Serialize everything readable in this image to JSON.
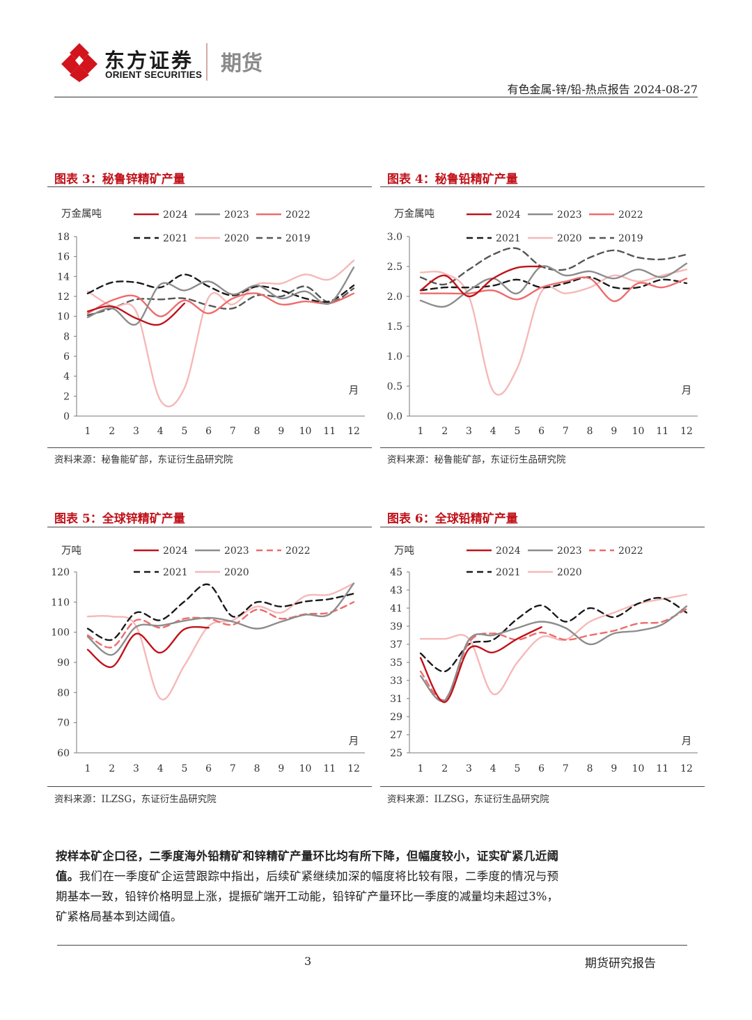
{
  "header": {
    "brand_cn": "东方证券",
    "brand_en": "ORIENT SECURITIES",
    "brand_tag": "期货",
    "report_title": "有色金属-锌/铅-热点报告 2024-08-27"
  },
  "colors": {
    "2024": "#c0121a",
    "2023": "#8c8c8c",
    "2022": "#ee6b6b",
    "2021": "#1a1a1a",
    "2020": "#f6b8b8",
    "2019": "#555555",
    "title_red": "#c0121a"
  },
  "figures": [
    {
      "title": "图表 3：秘鲁锌精矿产量",
      "source": "资料来源：秘鲁能矿部，东证衍生品研究院",
      "chart_data": {
        "type": "line",
        "ylabel": "万金属吨",
        "xlabel": "月",
        "x": [
          1,
          2,
          3,
          4,
          5,
          6,
          7,
          8,
          9,
          10,
          11,
          12
        ],
        "ylim": [
          0,
          18
        ],
        "yticks": [
          "0",
          "2",
          "4",
          "6",
          "8",
          "10",
          "12",
          "14",
          "16",
          "18"
        ],
        "legend_rows": [
          [
            "2024",
            "2023",
            "2022"
          ],
          [
            "2021",
            "2020",
            "2019"
          ]
        ],
        "series": [
          {
            "name": "2024",
            "style": "solid",
            "values": [
              10.5,
              11.0,
              9.8,
              9.2,
              11.3,
              null,
              null,
              null,
              null,
              null,
              null,
              null
            ]
          },
          {
            "name": "2023",
            "style": "solid",
            "values": [
              9.9,
              10.8,
              9.2,
              13.2,
              12.6,
              13.5,
              12.2,
              13.1,
              11.8,
              12.5,
              11.3,
              14.9
            ]
          },
          {
            "name": "2022",
            "style": "solid",
            "values": [
              10.3,
              11.6,
              12.0,
              10.0,
              11.6,
              10.3,
              11.8,
              12.3,
              11.2,
              11.5,
              11.3,
              12.3
            ]
          },
          {
            "name": "2021",
            "style": "dash",
            "values": [
              12.3,
              13.4,
              13.4,
              12.9,
              14.2,
              13.0,
              12.1,
              13.0,
              12.6,
              11.8,
              11.5,
              13.1
            ]
          },
          {
            "name": "2020",
            "style": "solid",
            "values": [
              12.5,
              11.0,
              10.5,
              1.6,
              2.8,
              11.9,
              11.2,
              13.2,
              13.3,
              14.2,
              13.7,
              15.6
            ]
          },
          {
            "name": "2019",
            "style": "dash",
            "values": [
              10.1,
              10.8,
              11.7,
              11.7,
              11.8,
              11.1,
              10.8,
              12.1,
              12.0,
              13.0,
              11.4,
              12.8
            ]
          }
        ]
      }
    },
    {
      "title": "图表 4：秘鲁铅精矿产量",
      "source": "资料来源：秘鲁能矿部，东证衍生品研究院",
      "chart_data": {
        "type": "line",
        "ylabel": "万金属吨",
        "xlabel": "月",
        "x": [
          1,
          2,
          3,
          4,
          5,
          6,
          7,
          8,
          9,
          10,
          11,
          12
        ],
        "ylim": [
          0,
          3
        ],
        "yticks": [
          "0.0",
          "0.5",
          "1.0",
          "1.5",
          "2.0",
          "2.5",
          "3.0"
        ],
        "legend_rows": [
          [
            "2024",
            "2023",
            "2022"
          ],
          [
            "2021",
            "2020",
            "2019"
          ]
        ],
        "series": [
          {
            "name": "2024",
            "style": "solid",
            "values": [
              2.1,
              2.35,
              2.0,
              2.3,
              2.48,
              2.5,
              null,
              null,
              null,
              null,
              null,
              null
            ]
          },
          {
            "name": "2023",
            "style": "solid",
            "values": [
              1.93,
              1.83,
              2.1,
              2.3,
              2.05,
              2.5,
              2.35,
              2.42,
              2.3,
              2.45,
              2.32,
              2.55
            ]
          },
          {
            "name": "2022",
            "style": "solid",
            "values": [
              2.05,
              2.05,
              2.05,
              2.1,
              1.95,
              2.15,
              2.25,
              2.3,
              1.92,
              2.22,
              2.15,
              2.3
            ]
          },
          {
            "name": "2021",
            "style": "dash",
            "values": [
              2.1,
              2.15,
              2.15,
              2.18,
              2.28,
              2.15,
              2.22,
              2.32,
              2.15,
              2.15,
              2.28,
              2.22
            ]
          },
          {
            "name": "2020",
            "style": "solid",
            "values": [
              2.4,
              2.38,
              2.0,
              0.42,
              0.8,
              2.08,
              2.05,
              2.15,
              2.35,
              2.25,
              2.35,
              2.45
            ]
          },
          {
            "name": "2019",
            "style": "dash",
            "values": [
              2.32,
              2.2,
              2.45,
              2.7,
              2.8,
              2.5,
              2.45,
              2.65,
              2.77,
              2.65,
              2.62,
              2.7
            ]
          }
        ]
      }
    },
    {
      "title": "图表 5：全球锌精矿产量",
      "source": "资料来源：ILZSG，东证衍生品研究院",
      "chart_data": {
        "type": "line",
        "ylabel": "万吨",
        "xlabel": "月",
        "x": [
          1,
          2,
          3,
          4,
          5,
          6,
          7,
          8,
          9,
          10,
          11,
          12
        ],
        "ylim": [
          60,
          120
        ],
        "yticks": [
          "60",
          "70",
          "80",
          "90",
          "100",
          "110",
          "120"
        ],
        "legend_rows": [
          [
            "2024",
            "2023",
            "2022"
          ],
          [
            "2021",
            "2020"
          ]
        ],
        "series": [
          {
            "name": "2024",
            "style": "solid",
            "values": [
              94.2,
              88.5,
              99.5,
              93.2,
              101.0,
              101.5,
              null,
              null,
              null,
              null,
              null,
              null
            ]
          },
          {
            "name": "2023",
            "style": "solid",
            "values": [
              98.5,
              92.5,
              101.8,
              102.2,
              103.8,
              104.8,
              103.5,
              101.2,
              103.5,
              105.8,
              106.0,
              116.2
            ]
          },
          {
            "name": "2022",
            "style": "dash",
            "values": [
              99.0,
              95.0,
              104.0,
              101.5,
              104.5,
              104.5,
              102.5,
              107.5,
              104.5,
              106.0,
              106.5,
              110.0
            ]
          },
          {
            "name": "2021",
            "style": "dash",
            "values": [
              101.2,
              97.5,
              106.5,
              104.0,
              110.2,
              115.8,
              105.2,
              110.0,
              108.5,
              110.2,
              111.0,
              112.8
            ]
          },
          {
            "name": "2020",
            "style": "solid",
            "values": [
              105.2,
              105.2,
              102.0,
              78.0,
              89.0,
              102.0,
              104.0,
              108.5,
              106.5,
              112.0,
              112.5,
              116.2
            ]
          }
        ]
      }
    },
    {
      "title": "图表 6：全球铅精矿产量",
      "source": "资料来源：ILZSG，东证衍生品研究院",
      "chart_data": {
        "type": "line",
        "ylabel": "万吨",
        "xlabel": "月",
        "x": [
          1,
          2,
          3,
          4,
          5,
          6,
          7,
          8,
          9,
          10,
          11,
          12
        ],
        "ylim": [
          25,
          45
        ],
        "yticks": [
          "25",
          "27",
          "29",
          "31",
          "33",
          "35",
          "37",
          "39",
          "41",
          "43",
          "45"
        ],
        "legend_rows": [
          [
            "2024",
            "2023",
            "2022"
          ],
          [
            "2021",
            "2020"
          ]
        ],
        "series": [
          {
            "name": "2024",
            "style": "solid",
            "values": [
              35.5,
              30.6,
              36.5,
              36.1,
              37.6,
              38.9,
              null,
              null,
              null,
              null,
              null,
              null
            ]
          },
          {
            "name": "2023",
            "style": "solid",
            "values": [
              33.5,
              30.8,
              37.5,
              38.0,
              38.8,
              39.5,
              38.8,
              37.0,
              38.2,
              38.5,
              39.2,
              41.2
            ]
          },
          {
            "name": "2022",
            "style": "dash",
            "values": [
              34.0,
              30.9,
              37.2,
              38.2,
              37.5,
              38.3,
              37.5,
              38.0,
              38.5,
              39.3,
              39.5,
              40.9
            ]
          },
          {
            "name": "2021",
            "style": "dash",
            "values": [
              36.0,
              34.0,
              37.0,
              37.5,
              39.8,
              41.3,
              39.5,
              41.0,
              40.0,
              41.5,
              42.1,
              40.5
            ]
          },
          {
            "name": "2020",
            "style": "solid",
            "values": [
              37.6,
              37.6,
              37.6,
              31.5,
              35.0,
              37.8,
              37.5,
              39.5,
              40.5,
              41.5,
              42.0,
              42.5
            ]
          }
        ]
      }
    }
  ],
  "body": {
    "bold_text": "按样本矿企口径，二季度海外铅精矿和锌精矿产量环比均有所下降，但幅度较小，证实矿紧几近阈值。",
    "normal_text": "我们在一季度矿企运营跟踪中指出，后续矿紧继续加深的幅度将比较有限，二季度的情况与预期基本一致，铅锌价格明显上涨，提振矿端开工动能，铅锌矿产量环比一季度的减量均未超过3%，矿紧格局基本到达阈值。"
  },
  "footer": {
    "page_number": "3",
    "label": "期货研究报告"
  }
}
